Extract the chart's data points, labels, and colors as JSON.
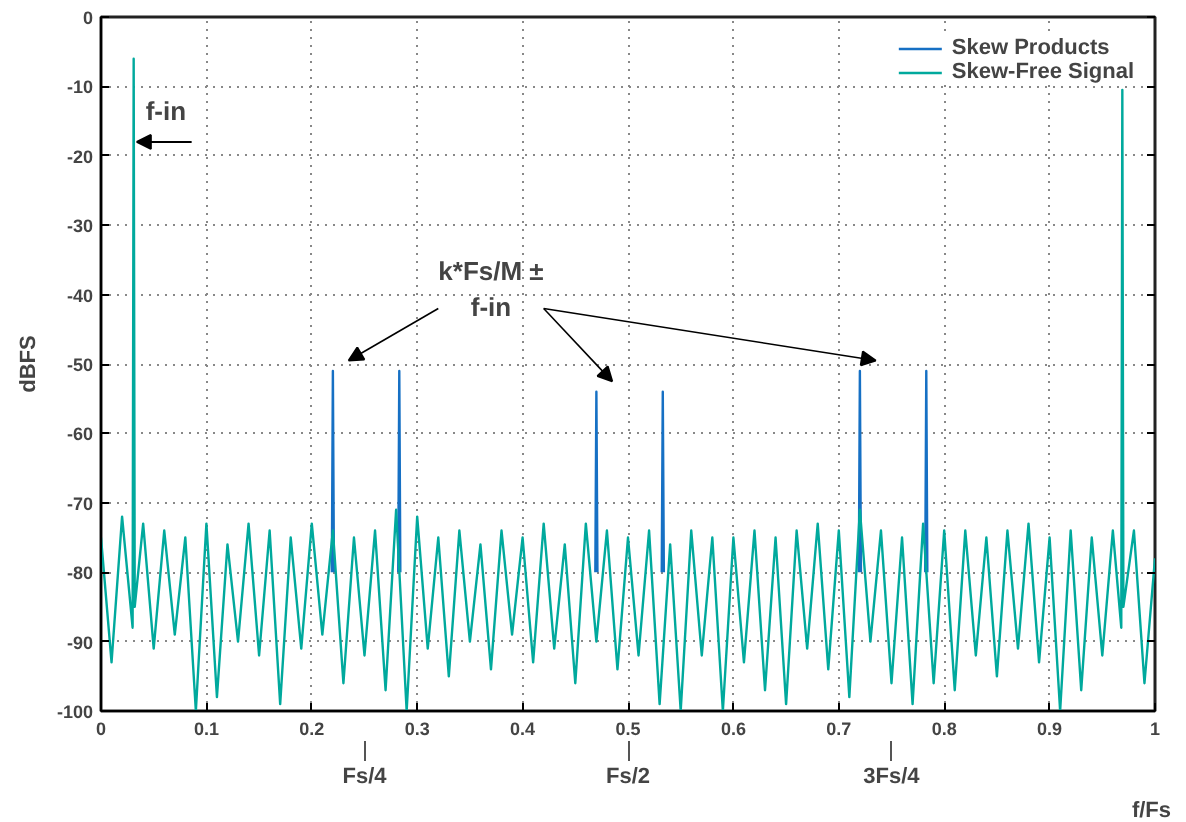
{
  "chart_data": {
    "type": "line",
    "xlabel": "f/Fs",
    "ylabel": "dBFS",
    "xlim": [
      0,
      1
    ],
    "ylim": [
      -100,
      0
    ],
    "xticks": [
      0,
      0.1,
      0.2,
      0.3,
      0.4,
      0.5,
      0.6,
      0.7,
      0.8,
      0.9,
      1
    ],
    "yticks": [
      0,
      -10,
      -20,
      -30,
      -40,
      -50,
      -60,
      -70,
      -80,
      -90,
      -100
    ],
    "grid": true,
    "legend": "top right",
    "series": [
      {
        "name": "Skew Products",
        "color": "#1670c4",
        "x": [
          0.219,
          0.22,
          0.221,
          0.222,
          0.282,
          0.283,
          0.284,
          0.285,
          0.469,
          0.47,
          0.471,
          0.472,
          0.532,
          0.533,
          0.534,
          0.535,
          0.719,
          0.72,
          0.721,
          0.722,
          0.782,
          0.783,
          0.784
        ],
        "values": [
          -80,
          -51,
          -80,
          null,
          -80,
          -51,
          -80,
          null,
          -80,
          -54,
          -80,
          null,
          -80,
          -54,
          -80,
          null,
          -80,
          -51,
          -80,
          null,
          -80,
          -51,
          -80
        ]
      },
      {
        "name": "Skew-Free Signal",
        "color": "#00a99d",
        "x": [
          0,
          0.01,
          0.02,
          0.03,
          0.031,
          0.032,
          0.04,
          0.05,
          0.06,
          0.07,
          0.08,
          0.09,
          0.1,
          0.11,
          0.12,
          0.13,
          0.14,
          0.15,
          0.16,
          0.17,
          0.18,
          0.19,
          0.2,
          0.21,
          0.22,
          0.23,
          0.24,
          0.25,
          0.26,
          0.27,
          0.28,
          0.29,
          0.3,
          0.31,
          0.32,
          0.33,
          0.34,
          0.35,
          0.36,
          0.37,
          0.38,
          0.39,
          0.4,
          0.41,
          0.42,
          0.43,
          0.44,
          0.45,
          0.46,
          0.47,
          0.48,
          0.49,
          0.5,
          0.51,
          0.52,
          0.53,
          0.54,
          0.55,
          0.56,
          0.57,
          0.58,
          0.59,
          0.6,
          0.61,
          0.62,
          0.63,
          0.64,
          0.65,
          0.66,
          0.67,
          0.68,
          0.69,
          0.7,
          0.71,
          0.72,
          0.73,
          0.74,
          0.75,
          0.76,
          0.77,
          0.78,
          0.79,
          0.8,
          0.81,
          0.82,
          0.83,
          0.84,
          0.85,
          0.86,
          0.87,
          0.88,
          0.89,
          0.9,
          0.91,
          0.92,
          0.93,
          0.94,
          0.95,
          0.96,
          0.968,
          0.969,
          0.97,
          0.98,
          0.99,
          1
        ],
        "values": [
          -75,
          -93,
          -72,
          -88,
          -6,
          -85,
          -73,
          -91,
          -74,
          -89,
          -75,
          -100,
          -73,
          -98,
          -76,
          -90,
          -73,
          -92,
          -74,
          -99,
          -75,
          -91,
          -73,
          -89,
          -74,
          -96,
          -75,
          -92,
          -74,
          -97,
          -71,
          -100,
          -72,
          -91,
          -75,
          -95,
          -74,
          -90,
          -76,
          -94,
          -74,
          -89,
          -75,
          -93,
          -73,
          -91,
          -76,
          -96,
          -73,
          -90,
          -74,
          -94,
          -75,
          -92,
          -74,
          -99,
          -76,
          -100,
          -74,
          -92,
          -75,
          -100,
          -75,
          -93,
          -74,
          -97,
          -75,
          -99,
          -74,
          -91,
          -73,
          -94,
          -74,
          -98,
          -71,
          -90,
          -74,
          -96,
          -75,
          -99,
          -73,
          -96,
          -74,
          -97,
          -74,
          -92,
          -75,
          -95,
          -74,
          -91,
          -73,
          -93,
          -75,
          -100,
          -74,
          -97,
          -75,
          -92,
          -74,
          -88,
          -10.5,
          -85,
          -74,
          -96,
          -78
        ]
      }
    ],
    "annotations": [
      {
        "text": "f-in",
        "x": 0.031,
        "y": -18
      },
      "k*Fs/M ±\nf-in",
      "Fs/4",
      "Fs/2",
      "3Fs/4"
    ]
  }
}
